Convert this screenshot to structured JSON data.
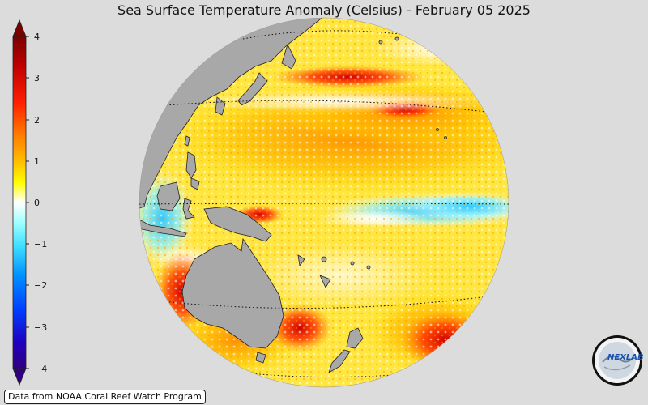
{
  "title": "Sea Surface Temperature Anomaly (Celsius) - February 05 2025",
  "colorbar": {
    "ticks": [
      "4",
      "3",
      "2",
      "1",
      "0",
      "−1",
      "−2",
      "−3",
      "−4"
    ],
    "stops": [
      "#ffffff",
      "#ffff00",
      "#ffc000",
      "#ff8000",
      "#ff2000",
      "#c00000",
      "#800000"
    ],
    "neg_stops": [
      "#ffffff",
      "#a0ffff",
      "#40e0ff",
      "#0090ff",
      "#0040ff",
      "#2000c0",
      "#300090"
    ]
  },
  "credit": "Data from NOAA Coral Reef Watch Program",
  "logo": {
    "text": "NEXLAB",
    "icon": "nexlab-logo-icon"
  },
  "colors": {
    "land": "#a8a8a8",
    "background": "#dcdcdc"
  }
}
